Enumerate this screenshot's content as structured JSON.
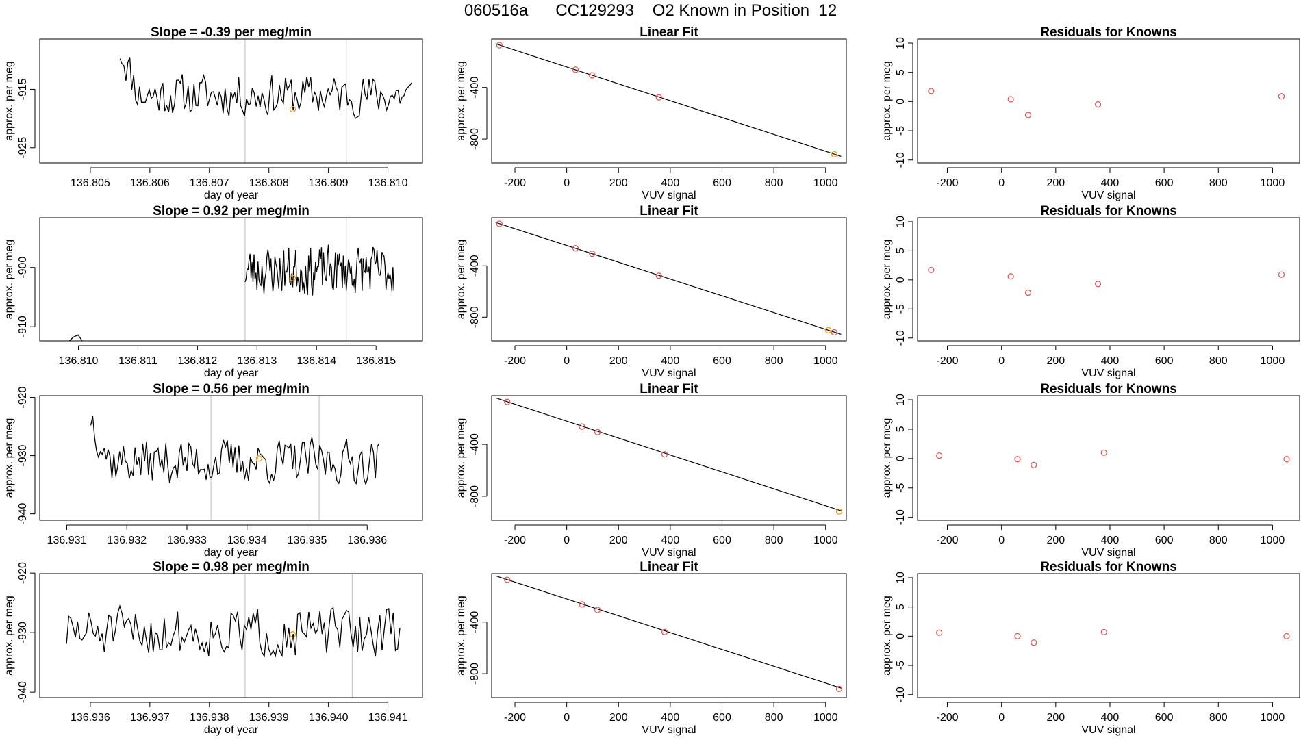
{
  "figure_title": {
    "run_id": "060516a",
    "tank": "CC129293",
    "description": "O2 Known in Position  12"
  },
  "colors": {
    "line": "#000000",
    "point": "#e05050",
    "highlight": "#ff9900",
    "marker_line": "#c8c8c8",
    "axis": "#000000"
  },
  "chart_data": [
    {
      "type": "line",
      "panel": "time-series",
      "title": "Slope =  -0.39  per meg/min",
      "xlabel": "day of year",
      "ylabel": "approx. per meg",
      "xlim": [
        136.80415,
        136.81058
      ],
      "ylim": [
        -927.6,
        -906.4
      ],
      "xticks": [
        136.805,
        136.806,
        136.807,
        136.808,
        136.809,
        136.81
      ],
      "xtick_labels": [
        "136.805",
        "136.806",
        "136.807",
        "136.808",
        "136.809",
        "136.810"
      ],
      "yticks": [
        -925,
        -915
      ],
      "ytick_labels": [
        "-925",
        "-915"
      ],
      "series_start": 136.8055,
      "series_end": 136.8104,
      "series_base": -916,
      "series_amp": 4.2,
      "series_seed": 11,
      "early_high": 8,
      "vlines": [
        136.8076,
        136.8093
      ],
      "highlight_point": {
        "x": 136.8084,
        "y": -918.4
      }
    },
    {
      "type": "line",
      "panel": "time-series",
      "title": "Slope =  0.92  per meg/min",
      "xlabel": "day of year",
      "ylabel": "approx. per meg",
      "xlim": [
        136.80935,
        136.81578
      ],
      "ylim": [
        -912.4,
        -891.6
      ],
      "xticks": [
        136.81,
        136.811,
        136.812,
        136.813,
        136.814,
        136.815
      ],
      "xtick_labels": [
        "136.810",
        "136.811",
        "136.812",
        "136.813",
        "136.814",
        "136.815"
      ],
      "yticks": [
        -910,
        -900
      ],
      "ytick_labels": [
        "-910",
        "-900"
      ],
      "series_start": 136.8128,
      "series_end": 136.8153,
      "series_base": -900.5,
      "series_amp": 4.8,
      "series_seed": 23,
      "early_high": 0,
      "baseline_segment": {
        "start": 136.8095,
        "end": 136.8128,
        "y": -912.6
      },
      "vlines": [
        136.8128,
        136.8145
      ],
      "highlight_point": {
        "x": 136.8136,
        "y": -901.8
      }
    },
    {
      "type": "line",
      "panel": "time-series",
      "title": "Slope =  0.56  per meg/min",
      "xlabel": "day of year",
      "ylabel": "approx. per meg",
      "xlim": [
        136.93055,
        136.93692
      ],
      "ylim": [
        -941.1,
        -919.7
      ],
      "xticks": [
        136.931,
        136.932,
        136.933,
        136.934,
        136.935,
        136.936
      ],
      "xtick_labels": [
        "136.931",
        "136.932",
        "136.933",
        "136.934",
        "136.935",
        "136.936"
      ],
      "yticks": [
        -940,
        -930,
        -920
      ],
      "ytick_labels": [
        "-940",
        "-930",
        "-920"
      ],
      "series_start": 136.9314,
      "series_end": 136.9362,
      "series_base": -931,
      "series_amp": 4.5,
      "series_seed": 37,
      "early_high": 8,
      "vlines": [
        136.9334,
        136.9352
      ],
      "highlight_point": {
        "x": 136.9342,
        "y": -930.5
      }
    },
    {
      "type": "line",
      "panel": "time-series",
      "title": "Slope =  0.98  per meg/min",
      "xlabel": "day of year",
      "ylabel": "approx. per meg",
      "xlim": [
        136.93515,
        136.94158
      ],
      "ylim": [
        -940.9,
        -920.1
      ],
      "xticks": [
        136.936,
        136.937,
        136.938,
        136.939,
        136.94,
        136.941
      ],
      "xtick_labels": [
        "136.936",
        "136.937",
        "136.938",
        "136.939",
        "136.940",
        "136.941"
      ],
      "yticks": [
        -940,
        -930,
        -920
      ],
      "ytick_labels": [
        "-940",
        "-930",
        "-920"
      ],
      "series_start": 136.9356,
      "series_end": 136.9412,
      "series_base": -930,
      "series_amp": 4.8,
      "series_seed": 51,
      "early_high": 0,
      "vlines": [
        136.9386,
        136.9404
      ],
      "highlight_point": {
        "x": 136.9394,
        "y": -930.3
      }
    },
    {
      "type": "scatter",
      "panel": "linear-fit",
      "title": "Linear Fit",
      "xlabel": "VUV signal",
      "ylabel": "approx. per meg",
      "xlim": [
        -290,
        1080
      ],
      "ylim": [
        -985,
        -25
      ],
      "xticks": [
        -200,
        0,
        200,
        400,
        600,
        800,
        1000
      ],
      "xtick_labels": [
        "-200",
        "0",
        "200",
        "400",
        "600",
        "800",
        "1000"
      ],
      "yticks": [
        -800,
        -400
      ],
      "ytick_labels": [
        "-800",
        "-400"
      ],
      "points": [
        {
          "x": -260,
          "y": -73,
          "highlight": false
        },
        {
          "x": 34,
          "y": -263,
          "highlight": false
        },
        {
          "x": 98,
          "y": -306,
          "highlight": false
        },
        {
          "x": 356,
          "y": -477,
          "highlight": false
        },
        {
          "x": 1033,
          "y": -918,
          "highlight": true
        }
      ],
      "fit_line": {
        "x1": -275,
        "y1": -62,
        "x2": 1060,
        "y2": -934
      }
    },
    {
      "type": "scatter",
      "panel": "linear-fit",
      "title": "Linear Fit",
      "xlabel": "VUV signal",
      "ylabel": "approx. per meg",
      "xlim": [
        -290,
        1080
      ],
      "ylim": [
        -985,
        -25
      ],
      "xticks": [
        -200,
        0,
        200,
        400,
        600,
        800,
        1000
      ],
      "xtick_labels": [
        "-200",
        "0",
        "200",
        "400",
        "600",
        "800",
        "1000"
      ],
      "yticks": [
        -800,
        -400
      ],
      "ytick_labels": [
        "-800",
        "-400"
      ],
      "points": [
        {
          "x": -260,
          "y": -73,
          "highlight": false
        },
        {
          "x": 34,
          "y": -263,
          "highlight": false
        },
        {
          "x": 98,
          "y": -306,
          "highlight": false
        },
        {
          "x": 356,
          "y": -477,
          "highlight": false
        },
        {
          "x": 1010,
          "y": -902,
          "highlight": true
        },
        {
          "x": 1033,
          "y": -918,
          "highlight": false
        }
      ],
      "fit_line": {
        "x1": -275,
        "y1": -62,
        "x2": 1060,
        "y2": -934
      }
    },
    {
      "type": "scatter",
      "panel": "linear-fit",
      "title": "Linear Fit",
      "xlabel": "VUV signal",
      "ylabel": "approx. per meg",
      "xlim": [
        -290,
        1080
      ],
      "ylim": [
        -985,
        -25
      ],
      "xticks": [
        -200,
        0,
        200,
        400,
        600,
        800,
        1000
      ],
      "xtick_labels": [
        "-200",
        "0",
        "200",
        "400",
        "600",
        "800",
        "1000"
      ],
      "yticks": [
        -800,
        -400
      ],
      "ytick_labels": [
        "-800",
        "-400"
      ],
      "points": [
        {
          "x": -230,
          "y": -73,
          "highlight": false
        },
        {
          "x": 59,
          "y": -263,
          "highlight": false
        },
        {
          "x": 119,
          "y": -306,
          "highlight": false
        },
        {
          "x": 378,
          "y": -477,
          "highlight": false
        },
        {
          "x": 1052,
          "y": -918,
          "highlight": true
        }
      ],
      "fit_line": {
        "x1": -275,
        "y1": -42,
        "x2": 1060,
        "y2": -912
      }
    },
    {
      "type": "scatter",
      "panel": "linear-fit",
      "title": "Linear Fit",
      "xlabel": "VUV signal",
      "ylabel": "approx. per meg",
      "xlim": [
        -290,
        1080
      ],
      "ylim": [
        -985,
        -25
      ],
      "xticks": [
        -200,
        0,
        200,
        400,
        600,
        800,
        1000
      ],
      "xtick_labels": [
        "-200",
        "0",
        "200",
        "400",
        "600",
        "800",
        "1000"
      ],
      "yticks": [
        -800,
        -400
      ],
      "ytick_labels": [
        "-800",
        "-400"
      ],
      "points": [
        {
          "x": -230,
          "y": -73,
          "highlight": false
        },
        {
          "x": 59,
          "y": -263,
          "highlight": false
        },
        {
          "x": 119,
          "y": -306,
          "highlight": false
        },
        {
          "x": 378,
          "y": -477,
          "highlight": false
        },
        {
          "x": 1052,
          "y": -918,
          "highlight": false
        }
      ],
      "fit_line": {
        "x1": -275,
        "y1": -42,
        "x2": 1060,
        "y2": -912
      }
    },
    {
      "type": "scatter",
      "panel": "residuals",
      "title": "Residuals for Knowns",
      "xlabel": "VUV signal",
      "ylabel": "approx. per meg",
      "xlim": [
        -310,
        1100
      ],
      "ylim": [
        -10.5,
        10.7
      ],
      "xticks": [
        -200,
        0,
        200,
        400,
        600,
        800,
        1000
      ],
      "xtick_labels": [
        "-200",
        "0",
        "200",
        "400",
        "600",
        "800",
        "1000"
      ],
      "yticks": [
        -10,
        -5,
        0,
        5,
        10
      ],
      "ytick_labels": [
        "-10",
        "-5",
        "0",
        "5",
        "10"
      ],
      "points": [
        {
          "x": -260,
          "y": 1.8
        },
        {
          "x": 34,
          "y": 0.4
        },
        {
          "x": 98,
          "y": -2.3
        },
        {
          "x": 356,
          "y": -0.5
        },
        {
          "x": 1033,
          "y": 0.9
        }
      ]
    },
    {
      "type": "scatter",
      "panel": "residuals",
      "title": "Residuals for Knowns",
      "xlabel": "VUV signal",
      "ylabel": "approx. per meg",
      "xlim": [
        -310,
        1100
      ],
      "ylim": [
        -10.5,
        10.7
      ],
      "xticks": [
        -200,
        0,
        200,
        400,
        600,
        800,
        1000
      ],
      "xtick_labels": [
        "-200",
        "0",
        "200",
        "400",
        "600",
        "800",
        "1000"
      ],
      "yticks": [
        -10,
        -5,
        0,
        5,
        10
      ],
      "ytick_labels": [
        "-10",
        "-5",
        "0",
        "5",
        "10"
      ],
      "points": [
        {
          "x": -260,
          "y": 1.7
        },
        {
          "x": 34,
          "y": 0.6
        },
        {
          "x": 98,
          "y": -2.2
        },
        {
          "x": 356,
          "y": -0.7
        },
        {
          "x": 1033,
          "y": 0.9
        }
      ]
    },
    {
      "type": "scatter",
      "panel": "residuals",
      "title": "Residuals for Knowns",
      "xlabel": "VUV signal",
      "ylabel": "approx. per meg",
      "xlim": [
        -310,
        1100
      ],
      "ylim": [
        -10.5,
        10.7
      ],
      "xticks": [
        -200,
        0,
        200,
        400,
        600,
        800,
        1000
      ],
      "xtick_labels": [
        "-200",
        "0",
        "200",
        "400",
        "600",
        "800",
        "1000"
      ],
      "yticks": [
        -10,
        -5,
        0,
        5,
        10
      ],
      "ytick_labels": [
        "-10",
        "-5",
        "0",
        "5",
        "10"
      ],
      "points": [
        {
          "x": -230,
          "y": 0.5
        },
        {
          "x": 59,
          "y": -0.1
        },
        {
          "x": 119,
          "y": -1.1
        },
        {
          "x": 378,
          "y": 1.0
        },
        {
          "x": 1052,
          "y": -0.1
        }
      ]
    },
    {
      "type": "scatter",
      "panel": "residuals",
      "title": "Residuals for Knowns",
      "xlabel": "VUV signal",
      "ylabel": "approx. per meg",
      "xlim": [
        -310,
        1100
      ],
      "ylim": [
        -10.5,
        10.7
      ],
      "xticks": [
        -200,
        0,
        200,
        400,
        600,
        800,
        1000
      ],
      "xtick_labels": [
        "-200",
        "0",
        "200",
        "400",
        "600",
        "800",
        "1000"
      ],
      "yticks": [
        -10,
        -5,
        0,
        5,
        10
      ],
      "ytick_labels": [
        "-10",
        "-5",
        "0",
        "5",
        "10"
      ],
      "points": [
        {
          "x": -230,
          "y": 0.6
        },
        {
          "x": 59,
          "y": 0.0
        },
        {
          "x": 119,
          "y": -1.1
        },
        {
          "x": 378,
          "y": 0.7
        },
        {
          "x": 1052,
          "y": 0.0
        }
      ]
    }
  ]
}
